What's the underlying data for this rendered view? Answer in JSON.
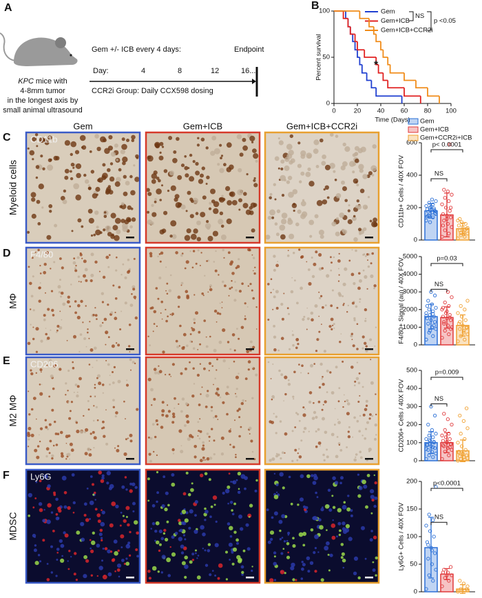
{
  "panels": {
    "A": "A",
    "B": "B",
    "C": "C",
    "D": "D",
    "E": "E",
    "F": "F"
  },
  "panel_a": {
    "strain": "KPC",
    "caption": [
      "mice with",
      "4-8mm tumor",
      "in the longest axis by",
      "small animal ultrasound"
    ],
    "schedule": "Gem +/- ICB every 4 days:",
    "day_label": "Day:",
    "days": [
      "4",
      "8",
      "12",
      "16..."
    ],
    "endpoint": "Endpoint",
    "ccr2i": "CCR2i Group: Daily CCX598 dosing"
  },
  "images": {
    "columns": [
      {
        "label": "Gem",
        "color": "#3a5bc7"
      },
      {
        "label": "Gem+ICB",
        "color": "#d63a2a"
      },
      {
        "label": "Gem+ICB+CCR2i",
        "color": "#e8a030"
      }
    ],
    "rows": [
      {
        "letter": "C",
        "label": "Myeloid cells",
        "stain": "CD11b"
      },
      {
        "letter": "D",
        "label": "MΦ",
        "stain": "F4/80"
      },
      {
        "letter": "E",
        "label": "M2 MΦ",
        "stain": "CD206"
      },
      {
        "letter": "F",
        "label": "MDSC",
        "stain": "Ly6G"
      }
    ]
  },
  "bar_legend": [
    {
      "name": "Gem",
      "color": "#2a6fd6"
    },
    {
      "name": "Gem+ICB",
      "color": "#e0383a"
    },
    {
      "name": "Gem+CCR2i+ICB",
      "color": "#f0a030"
    }
  ],
  "chart_data": [
    {
      "type": "survival",
      "xlabel": "Time (Days)",
      "ylabel": "Percent survival",
      "xlim": [
        0,
        100
      ],
      "xticks": [
        0,
        20,
        40,
        60,
        80,
        100
      ],
      "ylim": [
        0,
        100
      ],
      "yticks": [
        0,
        50,
        100
      ],
      "annotations": [
        "NS",
        "p <0.05",
        "*"
      ],
      "series": [
        {
          "name": "Gem",
          "color": "#1f3fd0",
          "x": [
            0,
            10,
            12,
            14,
            16,
            18,
            20,
            22,
            24,
            28,
            32,
            36,
            58
          ],
          "values": [
            100,
            92,
            83,
            75,
            67,
            58,
            50,
            42,
            33,
            25,
            17,
            8,
            0
          ]
        },
        {
          "name": "Gem+ICB",
          "color": "#e02020",
          "x": [
            0,
            8,
            12,
            14,
            18,
            20,
            26,
            36,
            38,
            42,
            46,
            60,
            74
          ],
          "values": [
            100,
            92,
            83,
            75,
            67,
            58,
            50,
            42,
            33,
            25,
            17,
            8,
            0
          ]
        },
        {
          "name": "Gem+ICB+CCR2i",
          "color": "#f08c1a",
          "x": [
            0,
            22,
            30,
            34,
            36,
            40,
            42,
            46,
            48,
            60,
            70,
            80,
            90
          ],
          "values": [
            100,
            92,
            83,
            75,
            67,
            58,
            50,
            42,
            33,
            25,
            17,
            8,
            0
          ]
        }
      ]
    },
    {
      "type": "bar",
      "ylabel": "CD11b+ Cells / 40X FOV",
      "ylim": [
        0,
        600
      ],
      "yticks": [
        0,
        200,
        400,
        600
      ],
      "values": [
        180,
        155,
        70
      ],
      "errors": [
        45,
        135,
        35
      ],
      "annotations": [
        "p< 0.0001",
        "NS"
      ],
      "points": [
        [
          120,
          140,
          150,
          160,
          170,
          175,
          180,
          185,
          190,
          195,
          200,
          210,
          220,
          230,
          240,
          250,
          150,
          165,
          205,
          145,
          185,
          110
        ],
        [
          20,
          40,
          60,
          80,
          100,
          120,
          140,
          150,
          160,
          180,
          200,
          220,
          240,
          260,
          280,
          300,
          310,
          200,
          130,
          90,
          590
        ],
        [
          10,
          20,
          30,
          40,
          50,
          60,
          70,
          80,
          90,
          100,
          110,
          120,
          60,
          45,
          75,
          35,
          130
        ]
      ]
    },
    {
      "type": "bar",
      "ylabel": "F4/80+ Signal (au) / 40X FOV",
      "ylim": [
        0,
        5000
      ],
      "yticks": [
        0,
        1000,
        2000,
        3000,
        4000,
        5000
      ],
      "values": [
        1600,
        1550,
        1100
      ],
      "errors": [
        700,
        600,
        600
      ],
      "annotations": [
        "p=0.03",
        "NS"
      ],
      "points": [
        [
          300,
          500,
          700,
          900,
          1000,
          1200,
          1300,
          1400,
          1500,
          1600,
          1700,
          1800,
          1900,
          2000,
          2100,
          2300,
          2500,
          2800,
          3000,
          2200,
          1100,
          800,
          1650,
          1750
        ],
        [
          400,
          600,
          800,
          1000,
          1100,
          1200,
          1400,
          1500,
          1600,
          1700,
          1800,
          2000,
          2200,
          2400,
          2700,
          3000,
          1300,
          900,
          1900,
          2100,
          1550
        ],
        [
          200,
          300,
          500,
          600,
          800,
          900,
          1000,
          1100,
          1200,
          1400,
          1600,
          1800,
          2000,
          2200,
          2500,
          700,
          1300,
          950
        ]
      ]
    },
    {
      "type": "bar",
      "ylabel": "CD206+ Cells / 40X FOV",
      "ylim": [
        0,
        500
      ],
      "yticks": [
        0,
        100,
        200,
        300,
        400,
        500
      ],
      "values": [
        100,
        100,
        55
      ],
      "errors": [
        60,
        55,
        60
      ],
      "annotations": [
        "p=0.009",
        "NS"
      ],
      "points": [
        [
          10,
          20,
          30,
          40,
          50,
          60,
          70,
          80,
          90,
          100,
          110,
          120,
          130,
          140,
          150,
          170,
          200,
          250,
          300,
          85,
          105,
          95,
          65,
          75,
          115
        ],
        [
          10,
          30,
          50,
          60,
          70,
          80,
          90,
          100,
          110,
          120,
          130,
          140,
          150,
          170,
          200,
          230,
          260,
          95,
          105,
          85,
          75
        ],
        [
          0,
          5,
          10,
          15,
          20,
          25,
          30,
          40,
          50,
          60,
          80,
          100,
          120,
          150,
          180,
          220,
          250,
          290,
          35,
          45
        ]
      ]
    },
    {
      "type": "bar",
      "ylabel": "Ly6G+ Cells / 40X FOV",
      "ylim": [
        0,
        200
      ],
      "yticks": [
        0,
        50,
        100,
        150,
        200
      ],
      "values": [
        80,
        32,
        5
      ],
      "errors": [
        55,
        10,
        8
      ],
      "annotations": [
        "p<0.0001",
        "NS"
      ],
      "points": [
        [
          5,
          20,
          30,
          40,
          50,
          60,
          70,
          80,
          90,
          100,
          110,
          120,
          130,
          140,
          190,
          75,
          85
        ],
        [
          10,
          20,
          25,
          30,
          35,
          40,
          45,
          30,
          35
        ],
        [
          0,
          2,
          5,
          10,
          15,
          20,
          5
        ]
      ]
    }
  ]
}
